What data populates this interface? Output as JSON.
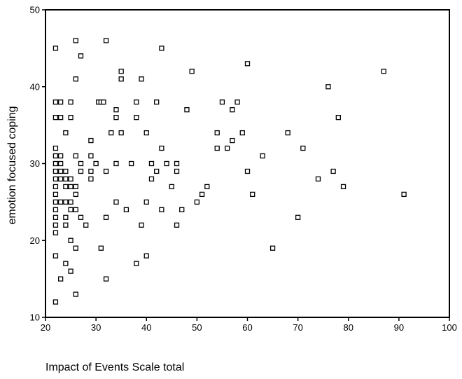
{
  "chart_data": {
    "type": "scatter",
    "title": "",
    "xlabel": "Impact of Events Scale total",
    "ylabel": "emotion focused coping",
    "xlim": [
      20,
      100
    ],
    "ylim": [
      10,
      50
    ],
    "xticks": [
      20,
      30,
      40,
      50,
      60,
      70,
      80,
      90,
      100
    ],
    "yticks": [
      10,
      20,
      30,
      40,
      50
    ],
    "grid": false,
    "legend": "none",
    "marker": "hollow-square",
    "marker_color": "#000000",
    "series": [
      {
        "points": [
          [
            22,
            45
          ],
          [
            22,
            38
          ],
          [
            22,
            36
          ],
          [
            22,
            32
          ],
          [
            22,
            31
          ],
          [
            22,
            30
          ],
          [
            22,
            29
          ],
          [
            22,
            28
          ],
          [
            22,
            27
          ],
          [
            22,
            26
          ],
          [
            22,
            25
          ],
          [
            22,
            24
          ],
          [
            22,
            23
          ],
          [
            22,
            22
          ],
          [
            22,
            21
          ],
          [
            22,
            18
          ],
          [
            22,
            12
          ],
          [
            23,
            38
          ],
          [
            23,
            36
          ],
          [
            23,
            31
          ],
          [
            23,
            30
          ],
          [
            23,
            29
          ],
          [
            23,
            28
          ],
          [
            23,
            25
          ],
          [
            23,
            15
          ],
          [
            24,
            34
          ],
          [
            24,
            29
          ],
          [
            24,
            28
          ],
          [
            24,
            27
          ],
          [
            24,
            25
          ],
          [
            24,
            23
          ],
          [
            24,
            22
          ],
          [
            24,
            17
          ],
          [
            25,
            38
          ],
          [
            25,
            36
          ],
          [
            25,
            28
          ],
          [
            25,
            27
          ],
          [
            25,
            25
          ],
          [
            25,
            24
          ],
          [
            25,
            20
          ],
          [
            25,
            16
          ],
          [
            26,
            46
          ],
          [
            26,
            41
          ],
          [
            26,
            31
          ],
          [
            26,
            27
          ],
          [
            26,
            26
          ],
          [
            26,
            24
          ],
          [
            26,
            19
          ],
          [
            26,
            13
          ],
          [
            27,
            44
          ],
          [
            27,
            30
          ],
          [
            27,
            29
          ],
          [
            27,
            23
          ],
          [
            28,
            22
          ],
          [
            29,
            33
          ],
          [
            29,
            31
          ],
          [
            29,
            29
          ],
          [
            29,
            28
          ],
          [
            30,
            30
          ],
          [
            30.5,
            38
          ],
          [
            31,
            38
          ],
          [
            31.5,
            38
          ],
          [
            31,
            19
          ],
          [
            32,
            46
          ],
          [
            32,
            29
          ],
          [
            32,
            23
          ],
          [
            32,
            15
          ],
          [
            33,
            34
          ],
          [
            34,
            37
          ],
          [
            34,
            36
          ],
          [
            34,
            30
          ],
          [
            34,
            25
          ],
          [
            35,
            42
          ],
          [
            35,
            41
          ],
          [
            35,
            34
          ],
          [
            36,
            24
          ],
          [
            37,
            30
          ],
          [
            38,
            38
          ],
          [
            38,
            36
          ],
          [
            38,
            17
          ],
          [
            39,
            41
          ],
          [
            39,
            22
          ],
          [
            40,
            34
          ],
          [
            40,
            25
          ],
          [
            40,
            18
          ],
          [
            41,
            30
          ],
          [
            41,
            28
          ],
          [
            42,
            38
          ],
          [
            42,
            29
          ],
          [
            43,
            45
          ],
          [
            43,
            32
          ],
          [
            43,
            24
          ],
          [
            44,
            30
          ],
          [
            45,
            27
          ],
          [
            46,
            30
          ],
          [
            46,
            29
          ],
          [
            46,
            22
          ],
          [
            47,
            24
          ],
          [
            48,
            37
          ],
          [
            49,
            42
          ],
          [
            50,
            25
          ],
          [
            51,
            26
          ],
          [
            52,
            27
          ],
          [
            54,
            34
          ],
          [
            54,
            32
          ],
          [
            55,
            38
          ],
          [
            56,
            32
          ],
          [
            57,
            37
          ],
          [
            57,
            33
          ],
          [
            58,
            38
          ],
          [
            59,
            34
          ],
          [
            60,
            43
          ],
          [
            60,
            29
          ],
          [
            61,
            26
          ],
          [
            63,
            31
          ],
          [
            65,
            19
          ],
          [
            68,
            34
          ],
          [
            70,
            23
          ],
          [
            71,
            32
          ],
          [
            74,
            28
          ],
          [
            76,
            40
          ],
          [
            77,
            29
          ],
          [
            78,
            36
          ],
          [
            79,
            27
          ],
          [
            87,
            42
          ],
          [
            91,
            26
          ]
        ]
      }
    ]
  }
}
